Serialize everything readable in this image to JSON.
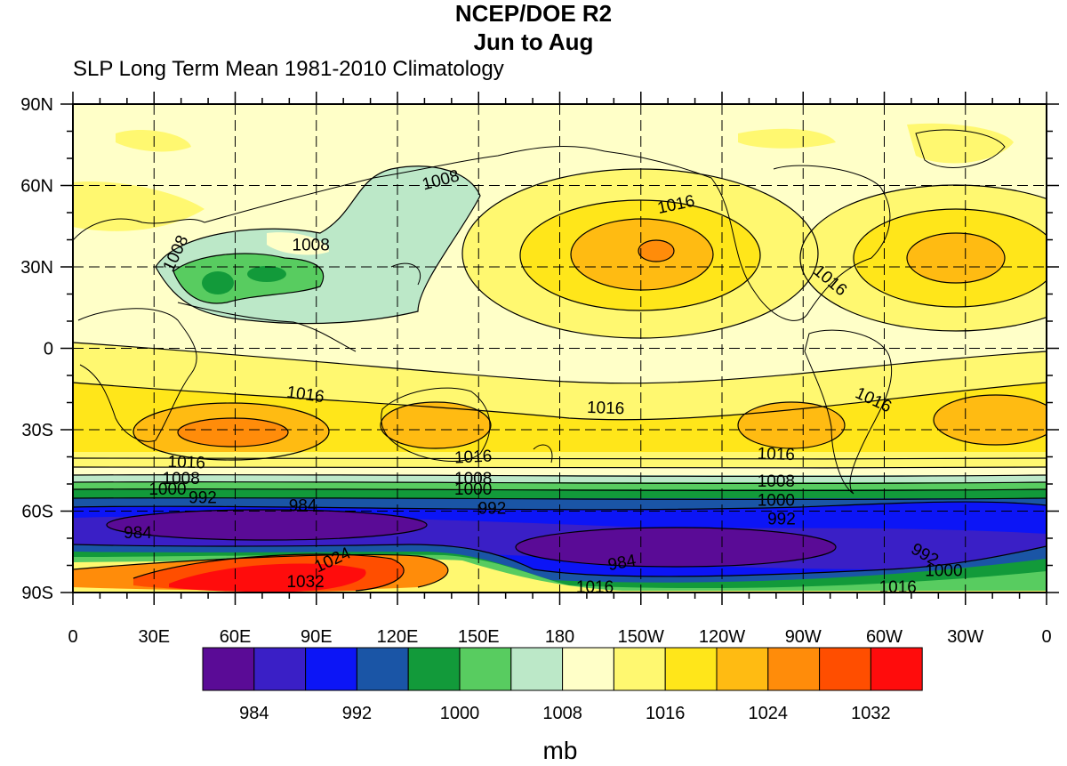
{
  "titles": {
    "main": "NCEP/DOE R2",
    "season": "Jun to Aug",
    "subtitle": "SLP Long Term Mean 1981-2010 Climatology"
  },
  "map": {
    "projection": "cylindrical-equidistant",
    "lon_range": [
      0,
      360
    ],
    "lat_range": [
      -90,
      90
    ],
    "grid": "dashed",
    "lat_labels": [
      {
        "lat": 90,
        "text": "90N"
      },
      {
        "lat": 60,
        "text": "60N"
      },
      {
        "lat": 30,
        "text": "30N"
      },
      {
        "lat": 0,
        "text": "0"
      },
      {
        "lat": -30,
        "text": "30S"
      },
      {
        "lat": -60,
        "text": "60S"
      },
      {
        "lat": -90,
        "text": "90S"
      }
    ],
    "lon_labels": [
      {
        "lon": 0,
        "text": "0"
      },
      {
        "lon": 30,
        "text": "30E"
      },
      {
        "lon": 60,
        "text": "60E"
      },
      {
        "lon": 90,
        "text": "90E"
      },
      {
        "lon": 120,
        "text": "120E"
      },
      {
        "lon": 150,
        "text": "150E"
      },
      {
        "lon": 180,
        "text": "180"
      },
      {
        "lon": 210,
        "text": "150W"
      },
      {
        "lon": 240,
        "text": "120W"
      },
      {
        "lon": 270,
        "text": "90W"
      },
      {
        "lon": 300,
        "text": "60W"
      },
      {
        "lon": 330,
        "text": "30W"
      },
      {
        "lon": 360,
        "text": "0"
      }
    ],
    "contour_labels": [
      {
        "text": "1008",
        "lon": 136,
        "lat": 62,
        "rot": -15
      },
      {
        "text": "1016",
        "lon": 223,
        "lat": 53,
        "rot": -12
      },
      {
        "text": "1008",
        "lon": 88,
        "lat": 38,
        "rot": 0
      },
      {
        "text": "1008",
        "lon": 38,
        "lat": 35,
        "rot": -65
      },
      {
        "text": "1016",
        "lon": 280,
        "lat": 25,
        "rot": 40
      },
      {
        "text": "1016",
        "lon": 86,
        "lat": -17,
        "rot": 8
      },
      {
        "text": "1016",
        "lon": 197,
        "lat": -22,
        "rot": 2
      },
      {
        "text": "1016",
        "lon": 296,
        "lat": -19,
        "rot": 25
      },
      {
        "text": "1016",
        "lon": 42,
        "lat": -42,
        "rot": 2
      },
      {
        "text": "1016",
        "lon": 148,
        "lat": -40,
        "rot": -3
      },
      {
        "text": "1016",
        "lon": 260,
        "lat": -39,
        "rot": 2
      },
      {
        "text": "1008",
        "lon": 40,
        "lat": -48,
        "rot": 0
      },
      {
        "text": "1008",
        "lon": 148,
        "lat": -48,
        "rot": 0
      },
      {
        "text": "1008",
        "lon": 260,
        "lat": -49,
        "rot": 0
      },
      {
        "text": "1000",
        "lon": 35,
        "lat": -52,
        "rot": 0
      },
      {
        "text": "1000",
        "lon": 148,
        "lat": -52,
        "rot": 0
      },
      {
        "text": "1000",
        "lon": 260,
        "lat": -56,
        "rot": 0
      },
      {
        "text": "992",
        "lon": 48,
        "lat": -55,
        "rot": 0
      },
      {
        "text": "992",
        "lon": 155,
        "lat": -59,
        "rot": 0
      },
      {
        "text": "992",
        "lon": 262,
        "lat": -63,
        "rot": 0
      },
      {
        "text": "992",
        "lon": 315,
        "lat": -76,
        "rot": 30
      },
      {
        "text": "1000",
        "lon": 322,
        "lat": -82,
        "rot": 0
      },
      {
        "text": "984",
        "lon": 85,
        "lat": -58,
        "rot": 0
      },
      {
        "text": "984",
        "lon": 24,
        "lat": -68,
        "rot": 0
      },
      {
        "text": "984",
        "lon": 203,
        "lat": -79,
        "rot": -10
      },
      {
        "text": "1024",
        "lon": 96,
        "lat": -78,
        "rot": -25
      },
      {
        "text": "1032",
        "lon": 86,
        "lat": -86,
        "rot": 0
      },
      {
        "text": "1016",
        "lon": 193,
        "lat": -88,
        "rot": 0
      },
      {
        "text": "1016",
        "lon": 305,
        "lat": -88,
        "rot": 0
      }
    ]
  },
  "legend": {
    "colors": [
      "#5a0b96",
      "#3a1fc6",
      "#0c15f6",
      "#1a55a6",
      "#129a3a",
      "#58cc60",
      "#bce8c8",
      "#ffffc8",
      "#fff870",
      "#ffe61a",
      "#ffbb12",
      "#ff8c0a",
      "#ff4e00",
      "#ff0c0c"
    ],
    "labels": [
      {
        "after_box": 1,
        "text": "984"
      },
      {
        "after_box": 3,
        "text": "992"
      },
      {
        "after_box": 5,
        "text": "1000"
      },
      {
        "after_box": 7,
        "text": "1008"
      },
      {
        "after_box": 9,
        "text": "1016"
      },
      {
        "after_box": 11,
        "text": "1024"
      },
      {
        "after_box": 13,
        "text": "1032"
      }
    ],
    "units": "mb"
  }
}
